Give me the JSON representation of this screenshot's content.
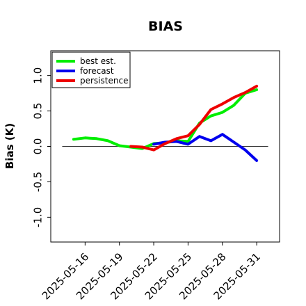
{
  "chart_data": {
    "type": "line",
    "title": "BIAS",
    "ylabel": "Bias (K)",
    "xlabel": "",
    "ylim": [
      -1.35,
      1.35
    ],
    "xlim": [
      "2025-05-13",
      "2025-06-02"
    ],
    "yticks": [
      "-1.0",
      "-0.5",
      "0.0",
      "0.5",
      "1.0"
    ],
    "ytick_values": [
      -1.0,
      -0.5,
      0.0,
      0.5,
      1.0
    ],
    "xticks": [
      "2025-05-16",
      "2025-05-19",
      "2025-05-22",
      "2025-05-25",
      "2025-05-28",
      "2025-05-31"
    ],
    "highlight_xtick": "2025-05-22",
    "highlight_color": "#228B22",
    "zero_line": true,
    "grid": false,
    "legend_position": "upper-left",
    "series": [
      {
        "name": "best est.",
        "color": "#00ee00",
        "x": [
          "2025-05-15",
          "2025-05-16",
          "2025-05-17",
          "2025-05-18",
          "2025-05-19",
          "2025-05-20",
          "2025-05-21",
          "2025-05-22",
          "2025-05-23",
          "2025-05-24",
          "2025-05-25",
          "2025-05-26",
          "2025-05-27",
          "2025-05-28",
          "2025-05-29",
          "2025-05-30",
          "2025-05-31"
        ],
        "values": [
          0.1,
          0.12,
          0.11,
          0.08,
          0.01,
          -0.01,
          -0.03,
          0.04,
          0.05,
          0.08,
          0.07,
          0.33,
          0.43,
          0.48,
          0.58,
          0.75,
          0.8
        ]
      },
      {
        "name": "forecast",
        "color": "#0000ee",
        "x": [
          "2025-05-22",
          "2025-05-23",
          "2025-05-24",
          "2025-05-25",
          "2025-05-26",
          "2025-05-27",
          "2025-05-28",
          "2025-05-29",
          "2025-05-30",
          "2025-05-31"
        ],
        "values": [
          0.03,
          0.06,
          0.07,
          0.03,
          0.14,
          0.08,
          0.17,
          0.06,
          -0.05,
          -0.2
        ]
      },
      {
        "name": "persistence",
        "color": "#ee0000",
        "x": [
          "2025-05-20",
          "2025-05-21",
          "2025-05-22",
          "2025-05-23",
          "2025-05-24",
          "2025-05-25",
          "2025-05-26",
          "2025-05-27",
          "2025-05-28",
          "2025-05-29",
          "2025-05-30",
          "2025-05-31"
        ],
        "values": [
          0.0,
          -0.01,
          -0.05,
          0.04,
          0.11,
          0.15,
          0.31,
          0.52,
          0.6,
          0.69,
          0.76,
          0.85
        ]
      }
    ]
  }
}
